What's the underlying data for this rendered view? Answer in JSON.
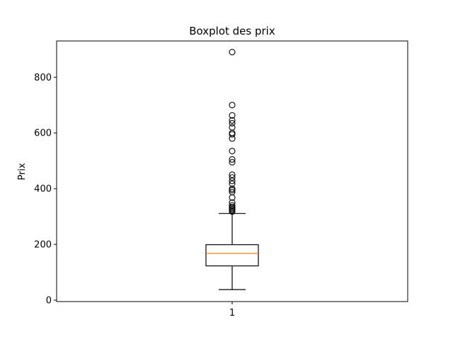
{
  "chart_data": {
    "type": "boxplot",
    "title": "Boxplot des prix",
    "ylabel": "Prix",
    "xlabel": "",
    "ylim": [
      -5,
      930
    ],
    "yticks": [
      0,
      200,
      400,
      600,
      800
    ],
    "categories": [
      "1"
    ],
    "grid": false,
    "colors": {
      "box": "#000000",
      "median": "#ff7f0e",
      "outlier": "#000000"
    },
    "boxes": [
      {
        "label": "1",
        "whisker_low": 38,
        "q1": 123,
        "median": 168,
        "q3": 199,
        "whisker_high": 311,
        "outliers": [
          318,
          322,
          326,
          330,
          334,
          340,
          350,
          368,
          388,
          395,
          400,
          418,
          428,
          440,
          450,
          495,
          505,
          535,
          580,
          595,
          600,
          620,
          635,
          645,
          663,
          700,
          890
        ]
      }
    ]
  }
}
